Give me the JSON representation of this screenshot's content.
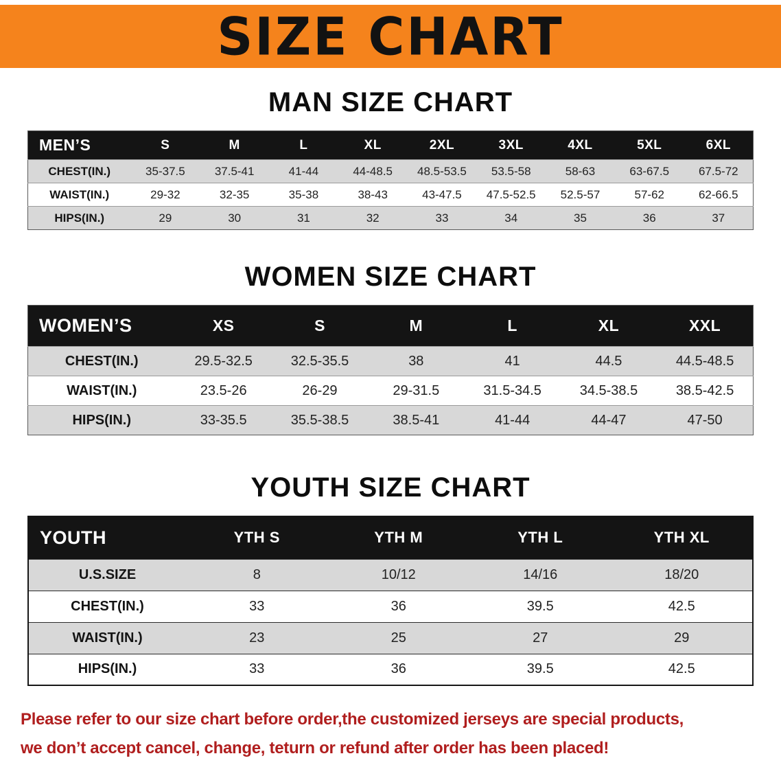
{
  "banner": {
    "title": "SIZE CHART",
    "background_color": "#F5831C",
    "text_color": "#121212"
  },
  "sections": [
    {
      "id": "men",
      "heading": "MAN SIZE CHART",
      "table": {
        "header": [
          "MEN’S",
          "S",
          "M",
          "L",
          "XL",
          "2XL",
          "3XL",
          "4XL",
          "5XL",
          "6XL"
        ],
        "rows": [
          [
            "CHEST(IN.)",
            "35-37.5",
            "37.5-41",
            "41-44",
            "44-48.5",
            "48.5-53.5",
            "53.5-58",
            "58-63",
            "63-67.5",
            "67.5-72"
          ],
          [
            "WAIST(IN.)",
            "29-32",
            "32-35",
            "35-38",
            "38-43",
            "43-47.5",
            "47.5-52.5",
            "52.5-57",
            "57-62",
            "62-66.5"
          ],
          [
            "HIPS(IN.)",
            "29",
            "30",
            "31",
            "32",
            "33",
            "34",
            "35",
            "36",
            "37"
          ]
        ]
      }
    },
    {
      "id": "women",
      "heading": "WOMEN SIZE CHART",
      "table": {
        "header": [
          "WOMEN’S",
          "XS",
          "S",
          "M",
          "L",
          "XL",
          "XXL"
        ],
        "rows": [
          [
            "CHEST(IN.)",
            "29.5-32.5",
            "32.5-35.5",
            "38",
            "41",
            "44.5",
            "44.5-48.5"
          ],
          [
            "WAIST(IN.)",
            "23.5-26",
            "26-29",
            "29-31.5",
            "31.5-34.5",
            "34.5-38.5",
            "38.5-42.5"
          ],
          [
            "HIPS(IN.)",
            "33-35.5",
            "35.5-38.5",
            "38.5-41",
            "41-44",
            "44-47",
            "47-50"
          ]
        ]
      }
    },
    {
      "id": "youth",
      "heading": "YOUTH SIZE CHART",
      "table": {
        "header": [
          "YOUTH",
          "YTH S",
          "YTH M",
          "YTH L",
          "YTH XL"
        ],
        "rows": [
          [
            "U.S.SIZE",
            "8",
            "10/12",
            "14/16",
            "18/20"
          ],
          [
            "CHEST(IN.)",
            "33",
            "36",
            "39.5",
            "42.5"
          ],
          [
            "WAIST(IN.)",
            "23",
            "25",
            "27",
            "29"
          ],
          [
            "HIPS(IN.)",
            "33",
            "36",
            "39.5",
            "42.5"
          ]
        ]
      }
    }
  ],
  "disclaimer": {
    "line1": "Please refer to our size chart before order,the customized jerseys are special products,",
    "line2": "we don’t accept cancel, change, teturn or refund after order has been placed!",
    "text_color": "#B01E1E"
  }
}
